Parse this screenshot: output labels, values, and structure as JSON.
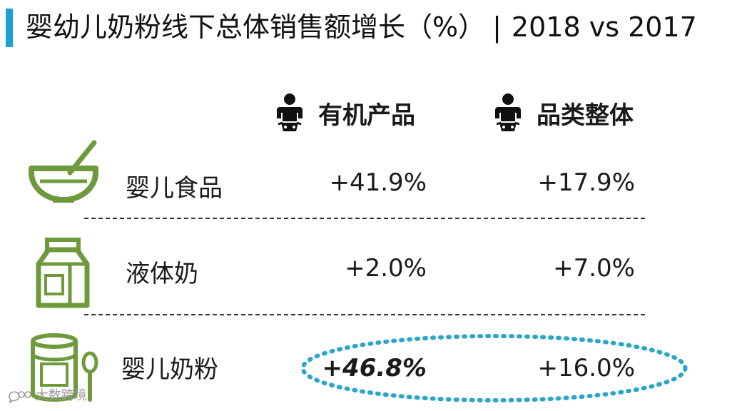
{
  "title": {
    "main": "婴幼儿奶粉线下总体销售额增长（%）",
    "separator": "|",
    "period": "2018 vs 2017"
  },
  "colors": {
    "accent": "#1f9fd6",
    "icon_green": "#6f9a3c",
    "highlight_dots": "#2aa6cc"
  },
  "chart_data": {
    "type": "table",
    "columns": [
      "有机产品",
      "品类整体"
    ],
    "rows": [
      {
        "category": "婴儿食品",
        "icon": "bowl-icon",
        "organic": "+41.9%",
        "overall": "+17.9%"
      },
      {
        "category": "液体奶",
        "icon": "milk-carton-icon",
        "organic": "+2.0%",
        "overall": "+7.0%"
      },
      {
        "category": "婴儿奶粉",
        "icon": "formula-can-icon",
        "organic": "+46.8%",
        "overall": "+16.0%"
      }
    ],
    "values": {
      "organic": [
        41.9,
        2.0,
        46.8
      ],
      "overall": [
        17.9,
        7.0,
        16.0
      ]
    },
    "highlighted_row": "婴儿奶粉",
    "emphasized_value": "+46.8%",
    "header_icons": [
      "baby-icon",
      "baby-icon"
    ]
  },
  "watermark": {
    "icon": "chat-bubble-icon",
    "text": "大数跨境"
  }
}
